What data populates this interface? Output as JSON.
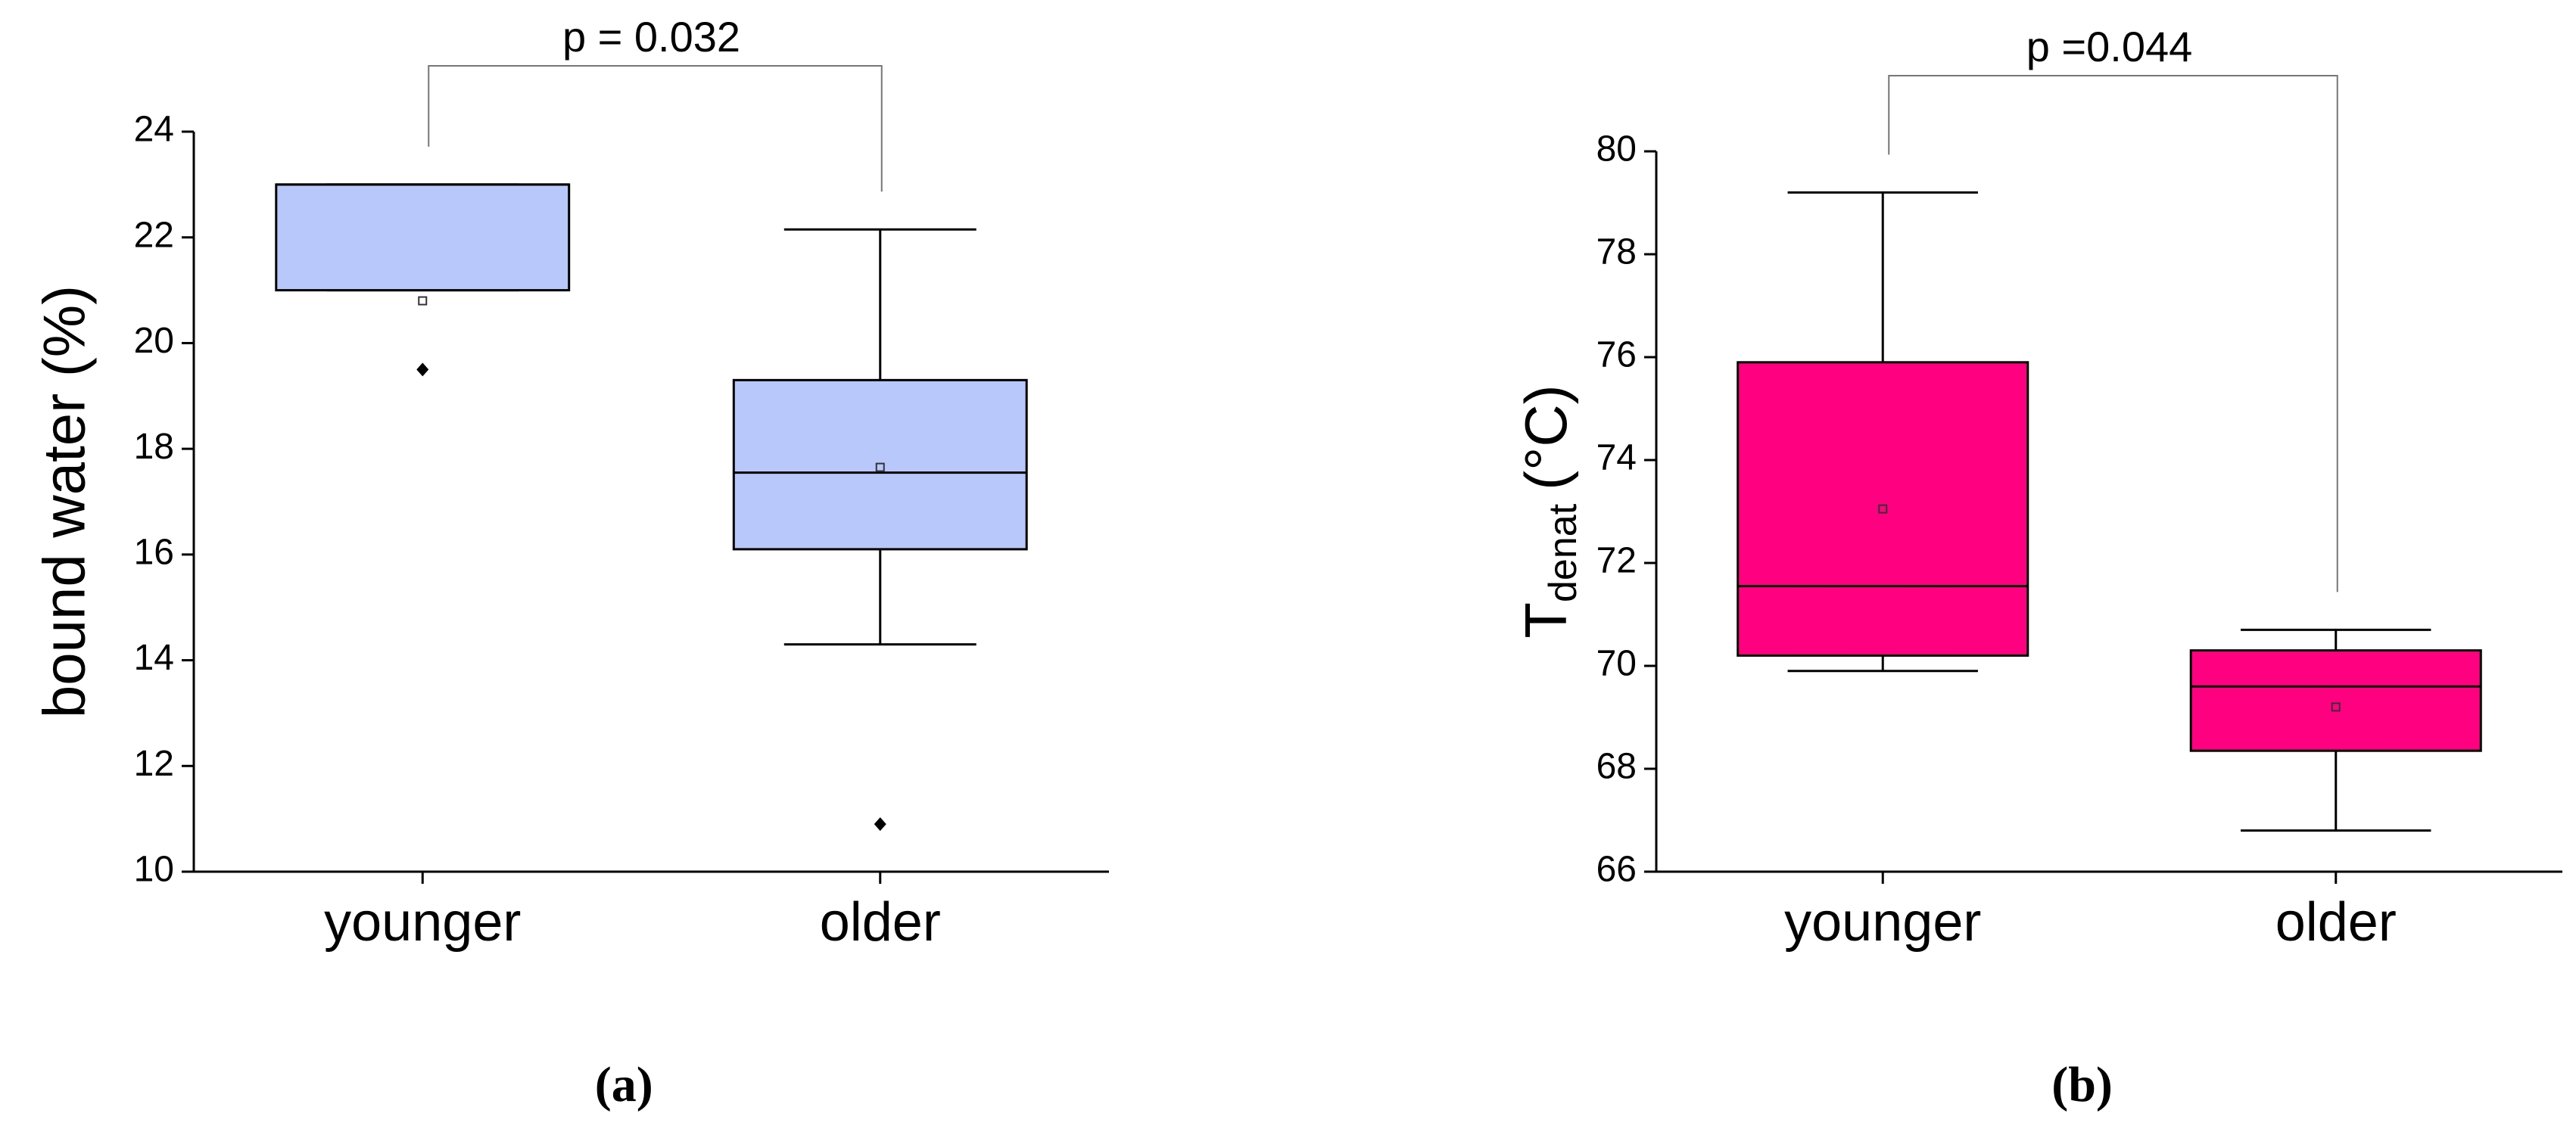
{
  "chart_data": [
    {
      "type": "box",
      "y_label": "bound water (%)",
      "categories": [
        "younger",
        "older"
      ],
      "color": "#b8c8fb",
      "boxes": [
        {
          "whisker_low": 21,
          "q1": 21,
          "median": 23,
          "q3": 23,
          "whisker_high": 23,
          "mean": 20.8,
          "outliers": [
            19.5
          ]
        },
        {
          "whisker_low": 14.3,
          "q1": 16.1,
          "median": 17.55,
          "q3": 19.3,
          "whisker_high": 22.15,
          "mean": 17.65,
          "outliers": [
            10.9
          ]
        }
      ],
      "ylim": [
        10,
        24
      ],
      "yticks": [
        10,
        12,
        14,
        16,
        18,
        20,
        22,
        24
      ],
      "annotation": "p = 0.032",
      "panel_label": "(a)"
    },
    {
      "type": "box",
      "y_label": [
        "T",
        "denat",
        "(°C)"
      ],
      "categories": [
        "younger",
        "older"
      ],
      "color": "#ff0080",
      "boxes": [
        {
          "whisker_low": 69.9,
          "q1": 70.2,
          "median": 71.55,
          "q3": 75.9,
          "whisker_high": 79.2,
          "mean": 73.05,
          "outliers": []
        },
        {
          "whisker_low": 66.8,
          "q1": 68.35,
          "median": 69.6,
          "q3": 70.3,
          "whisker_high": 70.7,
          "mean": 69.2,
          "outliers": []
        }
      ],
      "ylim": [
        66,
        80
      ],
      "yticks": [
        66,
        68,
        70,
        72,
        74,
        76,
        78,
        80
      ],
      "annotation": "p =0.044",
      "panel_label": "(b)"
    }
  ]
}
